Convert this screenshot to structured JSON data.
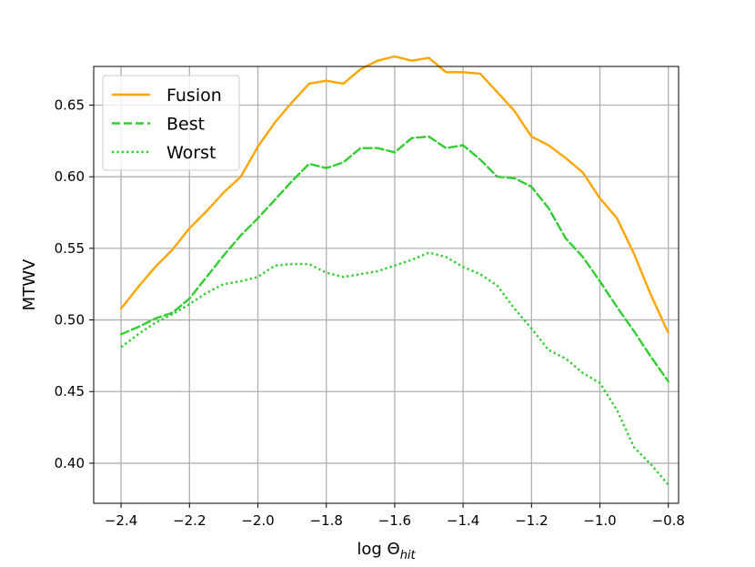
{
  "chart_data": {
    "type": "line",
    "xlabel_main": "log Θ",
    "xlabel_sub": "hit",
    "ylabel": "MTWV",
    "xlim": [
      -2.48,
      -0.77
    ],
    "ylim": [
      0.372,
      0.677
    ],
    "xticks": [
      -2.4,
      -2.2,
      -2.0,
      -1.8,
      -1.6,
      -1.4,
      -1.2,
      -1.0,
      -0.8
    ],
    "xtick_labels": [
      "−2.4",
      "−2.2",
      "−2.0",
      "−1.8",
      "−1.6",
      "−1.4",
      "−1.2",
      "−1.0",
      "−0.8"
    ],
    "yticks": [
      0.4,
      0.45,
      0.5,
      0.55,
      0.6,
      0.65
    ],
    "ytick_labels": [
      "0.40",
      "0.45",
      "0.50",
      "0.55",
      "0.60",
      "0.65"
    ],
    "grid": true,
    "legend_position": "top-left",
    "x": [
      -2.4,
      -2.35,
      -2.3,
      -2.25,
      -2.2,
      -2.15,
      -2.1,
      -2.05,
      -2.0,
      -1.95,
      -1.9,
      -1.85,
      -1.8,
      -1.75,
      -1.7,
      -1.65,
      -1.6,
      -1.55,
      -1.5,
      -1.45,
      -1.4,
      -1.35,
      -1.3,
      -1.25,
      -1.2,
      -1.15,
      -1.1,
      -1.05,
      -1.0,
      -0.95,
      -0.9,
      -0.85,
      -0.8
    ],
    "series": [
      {
        "name": "Fusion",
        "color": "#ffa500",
        "style": "solid",
        "values": [
          0.508,
          0.523,
          0.537,
          0.549,
          0.564,
          0.576,
          0.589,
          0.6,
          0.621,
          0.638,
          0.652,
          0.665,
          0.667,
          0.665,
          0.675,
          0.681,
          0.684,
          0.681,
          0.683,
          0.673,
          0.673,
          0.672,
          0.659,
          0.646,
          0.628,
          0.622,
          0.613,
          0.603,
          0.585,
          0.571,
          0.546,
          0.517,
          0.491
        ]
      },
      {
        "name": "Best",
        "color": "#32cd32",
        "style": "dashed",
        "values": [
          0.49,
          0.495,
          0.501,
          0.505,
          0.515,
          0.53,
          0.545,
          0.559,
          0.571,
          0.584,
          0.597,
          0.609,
          0.606,
          0.61,
          0.62,
          0.62,
          0.617,
          0.627,
          0.628,
          0.62,
          0.622,
          0.612,
          0.6,
          0.599,
          0.593,
          0.578,
          0.557,
          0.544,
          0.527,
          0.509,
          0.492,
          0.474,
          0.457
        ]
      },
      {
        "name": "Worst",
        "color": "#32cd32",
        "style": "dotted",
        "values": [
          0.481,
          0.49,
          0.498,
          0.504,
          0.511,
          0.519,
          0.525,
          0.527,
          0.53,
          0.538,
          0.539,
          0.539,
          0.533,
          0.53,
          0.532,
          0.534,
          0.538,
          0.542,
          0.547,
          0.544,
          0.537,
          0.532,
          0.524,
          0.508,
          0.494,
          0.479,
          0.473,
          0.463,
          0.456,
          0.437,
          0.411,
          0.399,
          0.385
        ]
      }
    ]
  }
}
